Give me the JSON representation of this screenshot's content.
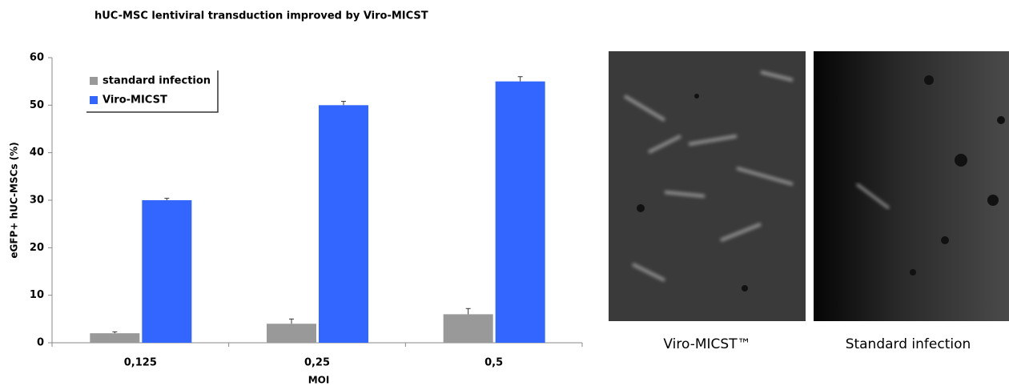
{
  "chart_data": {
    "type": "bar",
    "title": "hUC-MSC lentiviral transduction improved by Viro-MICST",
    "x_label": "MOI",
    "y_label": "eGFP+ hUC-MSCs (%)",
    "categories": [
      "0,125",
      "0,25",
      "0,5"
    ],
    "series": [
      {
        "name": "standard infection",
        "color": "#999999",
        "values": [
          2,
          4,
          6
        ],
        "errors": [
          0.3,
          1.0,
          1.2
        ]
      },
      {
        "name": "Viro-MICST",
        "color": "#3366ff",
        "values": [
          30,
          50,
          55
        ],
        "errors": [
          0.4,
          0.8,
          1.0
        ]
      }
    ],
    "ylim": [
      0,
      60
    ],
    "yticks": [
      0,
      10,
      20,
      30,
      40,
      50,
      60
    ],
    "grid": false,
    "legend": "top-left"
  },
  "images": [
    {
      "caption": "Viro-MICST™"
    },
    {
      "caption": "Standard infection"
    }
  ]
}
